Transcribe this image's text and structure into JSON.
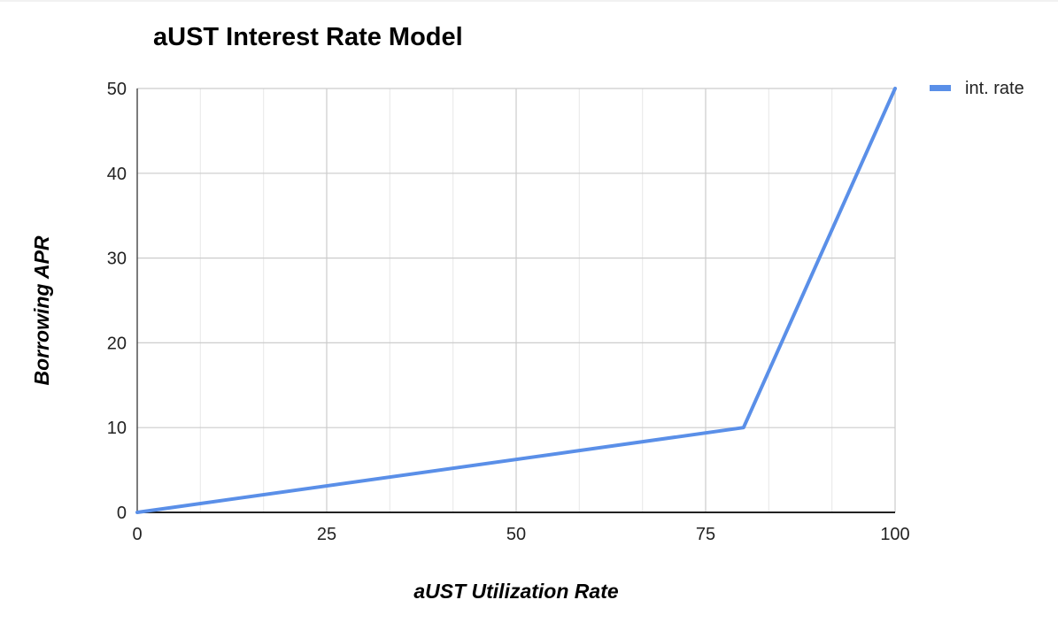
{
  "chart_data": {
    "type": "line",
    "title": "aUST Interest Rate Model",
    "xlabel": "aUST Utilization Rate",
    "ylabel": "Borrowing APR",
    "xlim": [
      0,
      100
    ],
    "ylim": [
      0,
      50
    ],
    "x_ticks": [
      0,
      25,
      50,
      75,
      100
    ],
    "y_ticks": [
      0,
      10,
      20,
      30,
      40,
      50
    ],
    "grid": true,
    "legend_position": "top-right",
    "series": [
      {
        "name": "int. rate",
        "color": "#5a8fe8",
        "x": [
          0,
          80,
          100
        ],
        "y": [
          0,
          10,
          50
        ]
      }
    ]
  }
}
